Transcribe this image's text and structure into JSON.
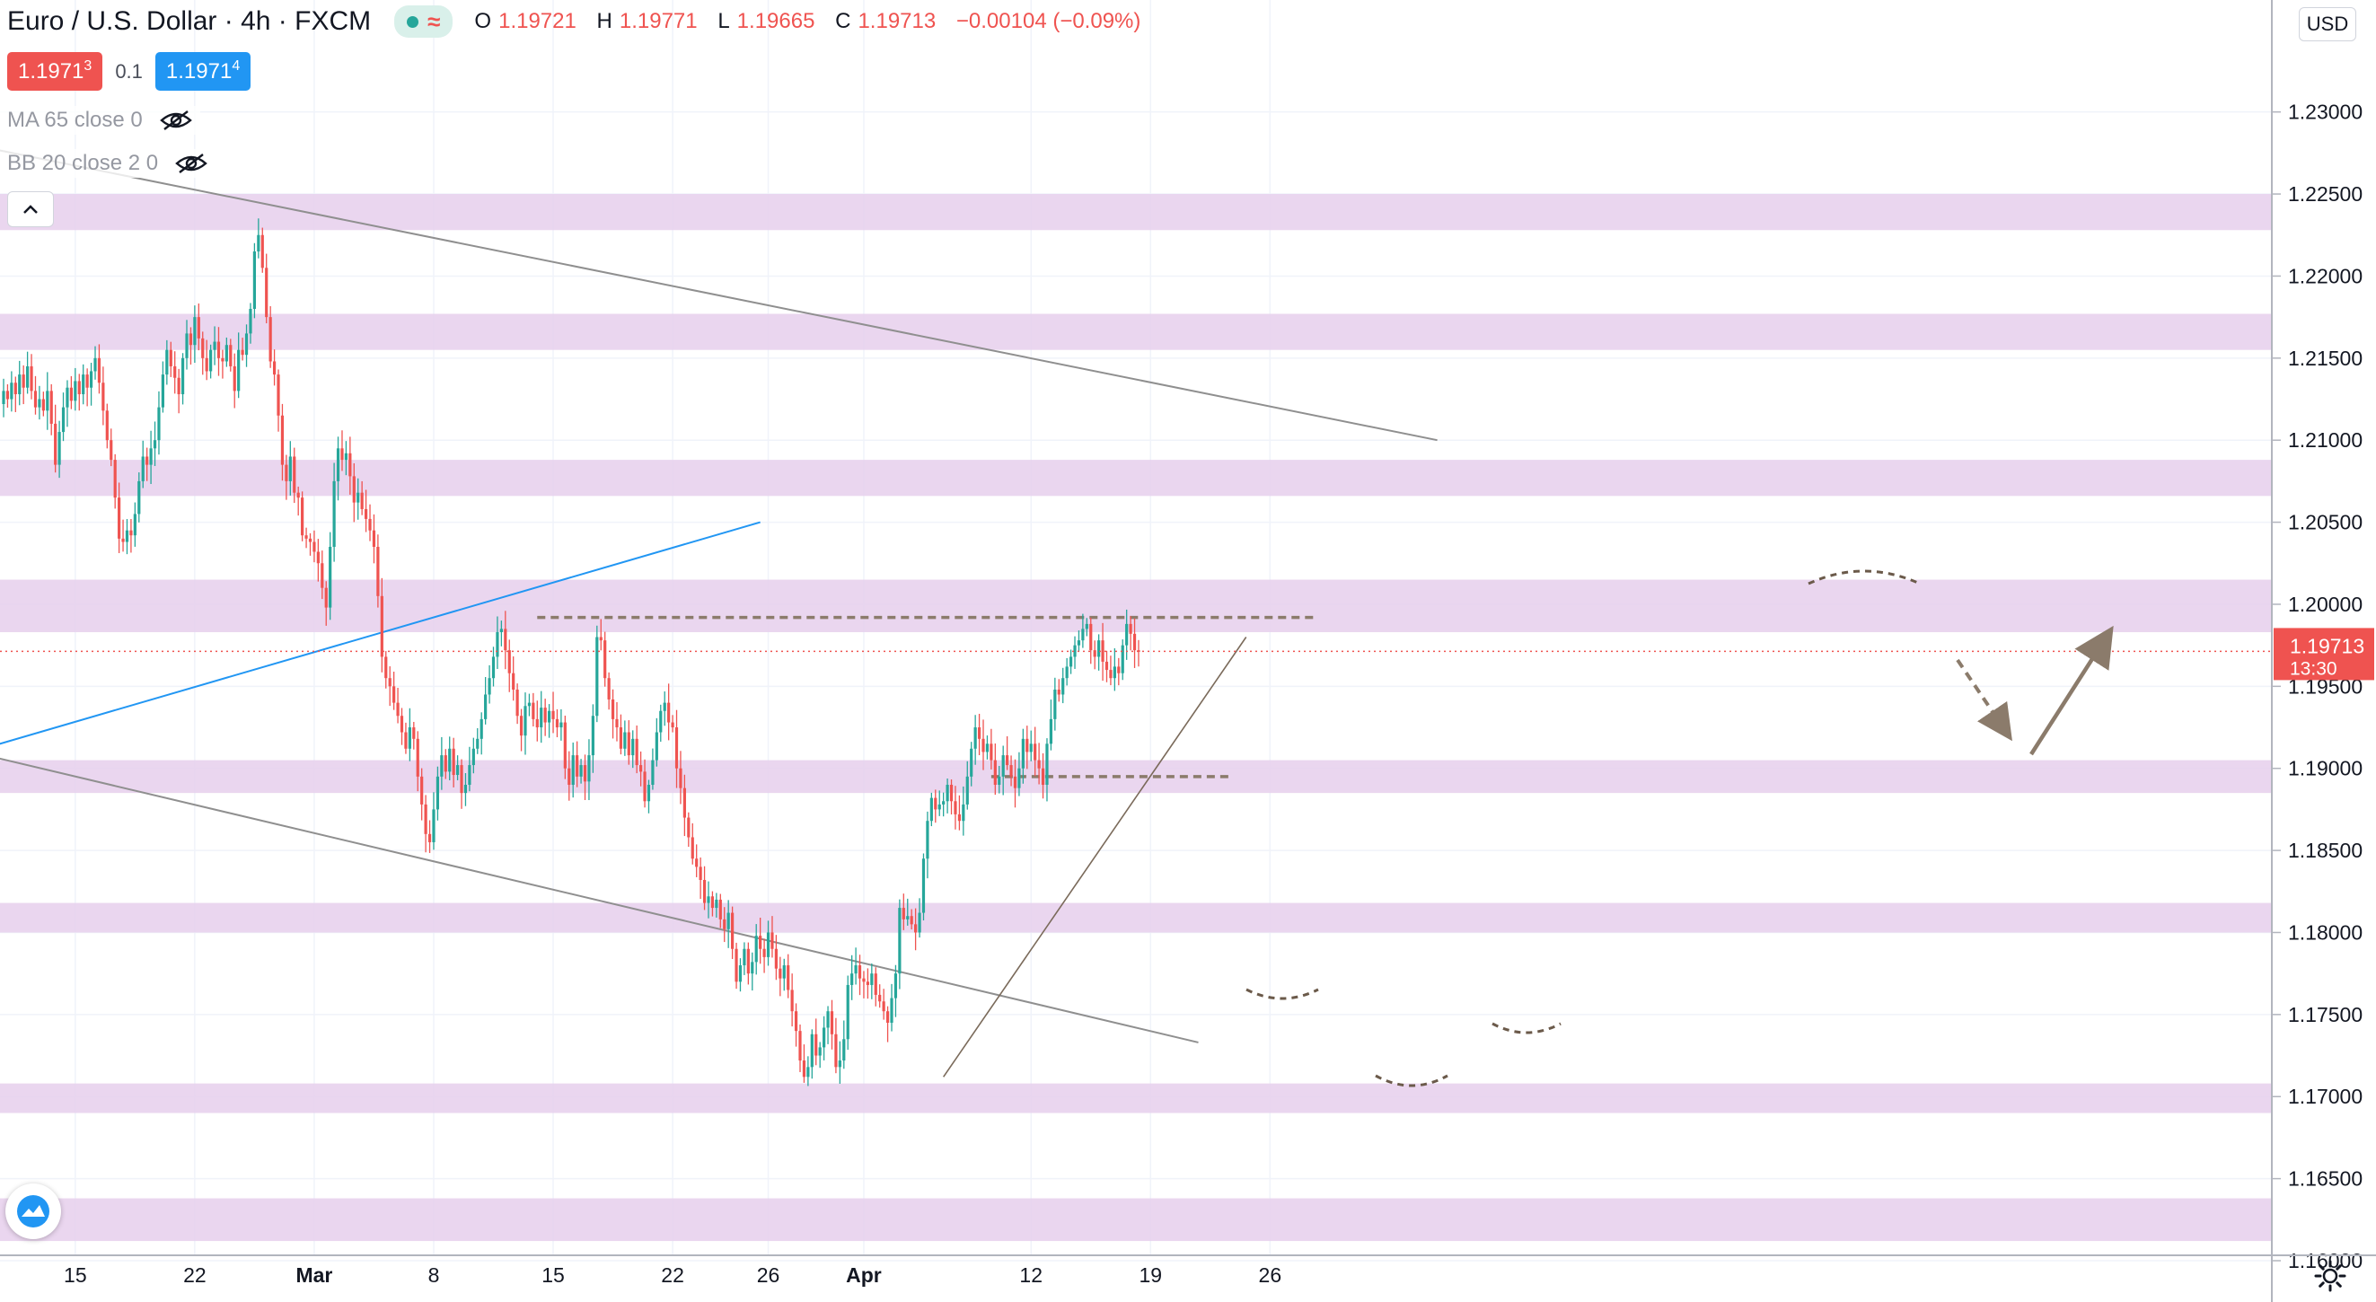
{
  "header": {
    "symbol": "Euro / U.S. Dollar",
    "interval": "4h",
    "exchange": "FXCM",
    "ohlc": {
      "o_label": "O",
      "o": "1.19721",
      "h_label": "H",
      "h": "1.19771",
      "l_label": "L",
      "l": "1.19665",
      "c_label": "C",
      "c": "1.19713",
      "change": "−0.00104 (−0.09%)"
    },
    "sell_price_main": "1.1971",
    "sell_price_sup": "3",
    "spread": "0.1",
    "buy_price_main": "1.1971",
    "buy_price_sup": "4"
  },
  "indicators": [
    {
      "label": "MA 65 close 0",
      "icon": "eye-off-icon"
    },
    {
      "label": "BB 20 close 2 0",
      "icon": "eye-off-icon"
    }
  ],
  "price_scale": {
    "currency": "USD",
    "current_price": "1.19713",
    "countdown": "13:30"
  },
  "colors": {
    "up": "#26a69a",
    "down": "#ef5350",
    "zone": "#e6cfec",
    "trend": "#8f8f8f",
    "blue_line": "#2196f3",
    "annotation": "#8b7b6b",
    "sell": "#ef5350",
    "buy": "#2196f3"
  },
  "chart_data": {
    "type": "candlestick",
    "y_axis": {
      "min": 1.1585,
      "max": 1.2345,
      "ticks": [
        "1.16000",
        "1.16500",
        "1.17000",
        "1.17500",
        "1.18000",
        "1.18500",
        "1.19000",
        "1.19500",
        "1.20000",
        "1.20500",
        "1.21000",
        "1.21500",
        "1.22000",
        "1.22500",
        "1.23000"
      ]
    },
    "x_axis": {
      "ticks": [
        {
          "label": "15",
          "bar": 18
        },
        {
          "label": "22",
          "bar": 48
        },
        {
          "label": "Mar",
          "bar": 78
        },
        {
          "label": "8",
          "bar": 108
        },
        {
          "label": "15",
          "bar": 138
        },
        {
          "label": "22",
          "bar": 168
        },
        {
          "label": "26",
          "bar": 192
        },
        {
          "label": "Apr",
          "bar": 216
        },
        {
          "label": "12",
          "bar": 258
        },
        {
          "label": "19",
          "bar": 288
        },
        {
          "label": "26",
          "bar": 318
        }
      ]
    },
    "series_close": [
      1.213,
      1.2125,
      1.2135,
      1.2128,
      1.214,
      1.2132,
      1.2145,
      1.213,
      1.212,
      1.2125,
      1.2118,
      1.213,
      1.211,
      1.2085,
      1.2105,
      1.212,
      1.2132,
      1.2124,
      1.2136,
      1.2128,
      1.214,
      1.2132,
      1.2142,
      1.215,
      1.2135,
      1.2118,
      1.21,
      1.2088,
      1.2065,
      1.204,
      1.2038,
      1.2045,
      1.2042,
      1.2055,
      1.2075,
      1.209,
      1.2085,
      1.2095,
      1.21,
      1.212,
      1.214,
      1.2155,
      1.2145,
      1.2138,
      1.2128,
      1.215,
      1.2165,
      1.2158,
      1.2175,
      1.2162,
      1.215,
      1.2142,
      1.2155,
      1.216,
      1.215,
      1.2148,
      1.2158,
      1.2145,
      1.213,
      1.2155,
      1.2152,
      1.2165,
      1.218,
      1.2215,
      1.2225,
      1.2205,
      1.2175,
      1.2148,
      1.214,
      1.2115,
      1.2085,
      1.2075,
      1.209,
      1.2068,
      1.2065,
      1.2042,
      1.204,
      1.2038,
      1.2032,
      1.2025,
      1.201,
      1.1998,
      1.2035,
      1.2075,
      1.2095,
      1.2088,
      1.2092,
      1.2078,
      1.2062,
      1.2068,
      1.2058,
      1.2052,
      1.2045,
      1.2035,
      1.2005,
      1.1968,
      1.1955,
      1.195,
      1.194,
      1.1932,
      1.1922,
      1.1912,
      1.1925,
      1.1918,
      1.1895,
      1.1878,
      1.186,
      1.1855,
      1.1875,
      1.1895,
      1.1908,
      1.1898,
      1.1912,
      1.1896,
      1.1902,
      1.1885,
      1.189,
      1.1902,
      1.1912,
      1.1918,
      1.193,
      1.1945,
      1.1955,
      1.1968,
      1.1983,
      1.1985,
      1.1972,
      1.1958,
      1.1948,
      1.1932,
      1.192,
      1.1938,
      1.194,
      1.193,
      1.1925,
      1.1937,
      1.1928,
      1.1935,
      1.193,
      1.1925,
      1.1928,
      1.19,
      1.189,
      1.1908,
      1.1895,
      1.1902,
      1.1892,
      1.1908,
      1.1932,
      1.198,
      1.1978,
      1.1955,
      1.1942,
      1.193,
      1.1925,
      1.1912,
      1.1922,
      1.1908,
      1.1918,
      1.1902,
      1.1898,
      1.188,
      1.189,
      1.1905,
      1.1922,
      1.1935,
      1.194,
      1.1928,
      1.1925,
      1.19,
      1.1888,
      1.187,
      1.1858,
      1.1845,
      1.184,
      1.1832,
      1.1818,
      1.1822,
      1.1815,
      1.182,
      1.1808,
      1.1802,
      1.1812,
      1.179,
      1.177,
      1.178,
      1.179,
      1.1775,
      1.1782,
      1.1798,
      1.179,
      1.1785,
      1.18,
      1.179,
      1.1778,
      1.1772,
      1.178,
      1.1765,
      1.1752,
      1.174,
      1.1722,
      1.1712,
      1.1718,
      1.1738,
      1.1725,
      1.173,
      1.1742,
      1.1752,
      1.1738,
      1.1718,
      1.1722,
      1.1735,
      1.1768,
      1.1775,
      1.178,
      1.1772,
      1.177,
      1.1768,
      1.1775,
      1.1762,
      1.1758,
      1.1752,
      1.1745,
      1.176,
      1.1775,
      1.1815,
      1.1808,
      1.181,
      1.1805,
      1.18,
      1.1812,
      1.1845,
      1.1868,
      1.1882,
      1.1875,
      1.1878,
      1.188,
      1.189,
      1.188,
      1.1872,
      1.1868,
      1.1878,
      1.1895,
      1.1912,
      1.1925,
      1.1918,
      1.191,
      1.1915,
      1.1905,
      1.189,
      1.1895,
      1.1908,
      1.1902,
      1.1895,
      1.1888,
      1.19,
      1.1918,
      1.191,
      1.1915,
      1.1905,
      1.19,
      1.189,
      1.1915,
      1.193,
      1.1948,
      1.1945,
      1.1955,
      1.1962,
      1.1968,
      1.1975,
      1.1978,
      1.1985,
      1.1988,
      1.1972,
      1.1968,
      1.1978,
      1.1965,
      1.196,
      1.1955,
      1.1962,
      1.1958,
      1.1975,
      1.1988,
      1.1982,
      1.1972,
      1.1971
    ],
    "zones": [
      [
        1.2228,
        1.225
      ],
      [
        1.2155,
        1.2177
      ],
      [
        1.2066,
        1.2088
      ],
      [
        1.1983,
        1.2015
      ],
      [
        1.1885,
        1.1905
      ],
      [
        1.18,
        1.1818
      ],
      [
        1.169,
        1.1708
      ],
      [
        1.1612,
        1.1638
      ]
    ],
    "lines": {
      "upper_channel": [
        [
          -8,
          1.228
        ],
        [
          360,
          1.21
        ]
      ],
      "lower_channel": [
        [
          -8,
          1.191
        ],
        [
          300,
          1.1733
        ]
      ],
      "blue_trend": [
        [
          -8,
          1.191
        ],
        [
          190,
          1.205
        ]
      ],
      "rising_support": [
        [
          236,
          1.1712
        ],
        [
          312,
          1.198
        ]
      ],
      "resistance_dashed": [
        [
          134,
          1.1992
        ],
        [
          330,
          1.1992
        ]
      ],
      "neckline_dashed": [
        [
          248,
          1.1895
        ],
        [
          308,
          1.1895
        ]
      ]
    },
    "current_price": 1.19713
  }
}
